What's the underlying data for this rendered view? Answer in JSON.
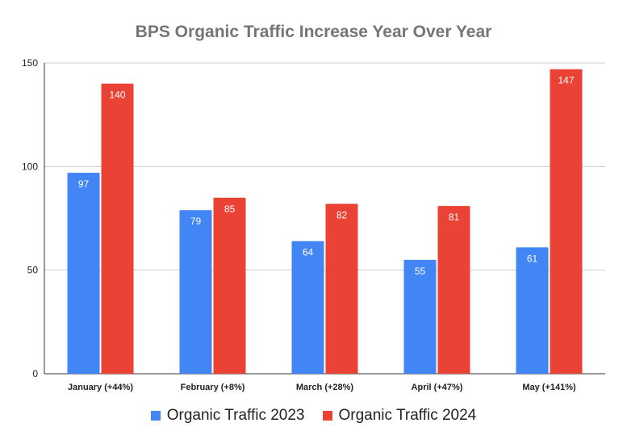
{
  "chart_data": {
    "type": "bar",
    "title": "BPS Organic Traffic Increase Year Over Year",
    "xlabel": "",
    "ylabel": "",
    "categories": [
      "January (+44%)",
      "February (+8%)",
      "March (+28%)",
      "April (+47%)",
      "May (+141%)"
    ],
    "series": [
      {
        "name": "Organic Traffic 2023",
        "color": "#4285F4",
        "values": [
          97,
          79,
          64,
          55,
          61
        ]
      },
      {
        "name": "Organic Traffic 2024",
        "color": "#EA4335",
        "values": [
          140,
          85,
          82,
          81,
          147
        ]
      }
    ],
    "ylim": [
      0,
      150
    ],
    "yticks": [
      0,
      50,
      100,
      150
    ],
    "grid": true,
    "legend_position": "bottom",
    "data_labels": true
  }
}
